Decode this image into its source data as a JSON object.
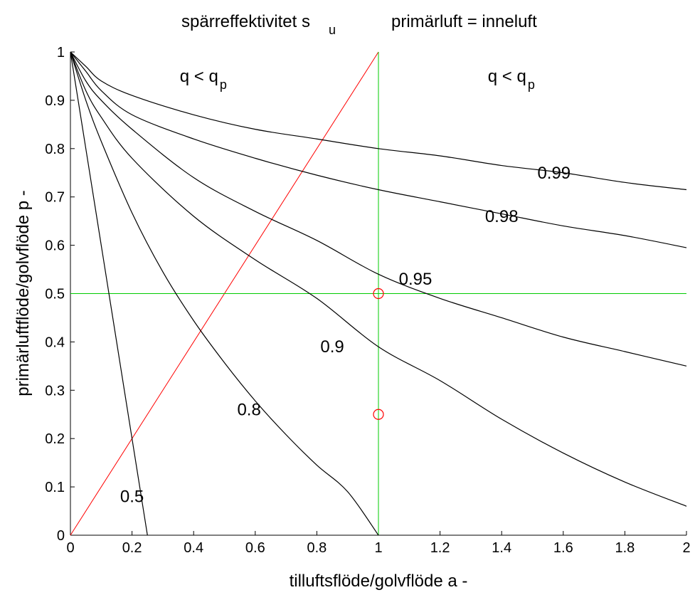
{
  "chart_data": {
    "type": "line",
    "title_main": "spärreffektivitet s",
    "title_sub": "u",
    "title_right": "primärluft = inneluft",
    "xlabel": "tilluftsflöde/golvflöde a  -",
    "ylabel": "primärluftflöde/golvflöde p  -",
    "xlim": [
      0,
      2
    ],
    "ylim": [
      0,
      1
    ],
    "xticks": [
      "0",
      "0.2",
      "0.4",
      "0.6",
      "0.8",
      "1",
      "1.2",
      "1.4",
      "1.6",
      "1.8",
      "2"
    ],
    "yticks": [
      "0",
      "0.1",
      "0.2",
      "0.3",
      "0.4",
      "0.5",
      "0.6",
      "0.7",
      "0.8",
      "0.9",
      "1"
    ],
    "grid": false,
    "region_labels": [
      {
        "main": "q < q",
        "sub": "p",
        "x": 0.48,
        "y": 0.95
      },
      {
        "main": "q < q",
        "sub": "p",
        "x": 1.48,
        "y": 0.95
      }
    ],
    "series": [
      {
        "label": "0.5",
        "color": "#000000",
        "x": [
          0,
          0.02,
          0.05,
          0.08,
          0.1,
          0.12,
          0.15,
          0.18,
          0.2,
          0.22,
          0.25
        ],
        "y": [
          1,
          0.92,
          0.8,
          0.68,
          0.6,
          0.52,
          0.4,
          0.28,
          0.2,
          0.12,
          0
        ],
        "label_x": 0.2,
        "label_y": 0.08
      },
      {
        "label": "0.8",
        "color": "#000000",
        "x": [
          0,
          0.05,
          0.1,
          0.2,
          0.3,
          0.4,
          0.5,
          0.6,
          0.7,
          0.8,
          0.9,
          1.0
        ],
        "y": [
          1,
          0.9,
          0.815,
          0.667,
          0.545,
          0.444,
          0.357,
          0.278,
          0.208,
          0.145,
          0.09,
          0
        ],
        "label_x": 0.58,
        "label_y": 0.26
      },
      {
        "label": "0.9",
        "color": "#000000",
        "x": [
          0,
          0.05,
          0.1,
          0.2,
          0.4,
          0.6,
          0.8,
          1.0,
          1.2,
          1.4,
          1.6,
          1.8,
          2.0
        ],
        "y": [
          1,
          0.92,
          0.865,
          0.78,
          0.66,
          0.57,
          0.49,
          0.39,
          0.32,
          0.24,
          0.17,
          0.11,
          0.06
        ],
        "label_x": 0.85,
        "label_y": 0.39
      },
      {
        "label": "0.95",
        "color": "#000000",
        "x": [
          0,
          0.05,
          0.1,
          0.2,
          0.4,
          0.6,
          0.8,
          1.0,
          1.2,
          1.4,
          1.6,
          1.8,
          2.0
        ],
        "y": [
          1,
          0.94,
          0.9,
          0.84,
          0.74,
          0.67,
          0.61,
          0.54,
          0.49,
          0.45,
          0.41,
          0.38,
          0.35
        ],
        "label_x": 1.12,
        "label_y": 0.53
      },
      {
        "label": "0.98",
        "color": "#000000",
        "x": [
          0,
          0.05,
          0.1,
          0.2,
          0.4,
          0.6,
          0.8,
          1.0,
          1.2,
          1.4,
          1.6,
          1.8,
          2.0
        ],
        "y": [
          1,
          0.96,
          0.92,
          0.87,
          0.82,
          0.78,
          0.745,
          0.715,
          0.69,
          0.665,
          0.64,
          0.62,
          0.595
        ],
        "label_x": 1.4,
        "label_y": 0.66
      },
      {
        "label": "0.99",
        "color": "#000000",
        "x": [
          0,
          0.05,
          0.1,
          0.2,
          0.4,
          0.6,
          0.8,
          1.0,
          1.2,
          1.4,
          1.6,
          1.8,
          2.0
        ],
        "y": [
          1,
          0.97,
          0.94,
          0.91,
          0.87,
          0.84,
          0.82,
          0.8,
          0.785,
          0.765,
          0.75,
          0.73,
          0.715
        ],
        "label_x": 1.57,
        "label_y": 0.75
      }
    ],
    "reference_lines": [
      {
        "kind": "diagonal",
        "color": "#ff0000",
        "x": [
          0,
          1
        ],
        "y": [
          0,
          1
        ]
      },
      {
        "kind": "vertical",
        "color": "#00cc00",
        "x": [
          1,
          1
        ],
        "y": [
          0,
          1
        ]
      },
      {
        "kind": "horizontal",
        "color": "#00cc00",
        "x": [
          0,
          2
        ],
        "y": [
          0.5,
          0.5
        ]
      }
    ],
    "markers": [
      {
        "x": 1,
        "y": 0.5,
        "color": "#ff0000",
        "shape": "circle"
      },
      {
        "x": 1,
        "y": 0.25,
        "color": "#ff0000",
        "shape": "circle"
      }
    ]
  }
}
